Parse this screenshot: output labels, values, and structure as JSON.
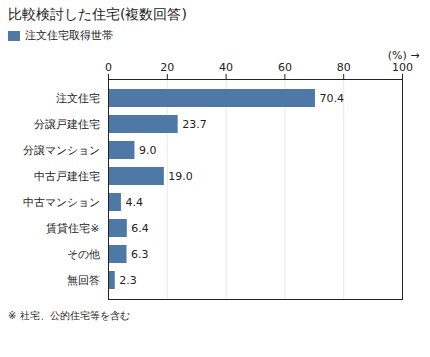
{
  "chart_data": {
    "type": "bar",
    "orientation": "horizontal",
    "title": "比較検討した住宅(複数回答)",
    "xlabel": "(%)",
    "caption": "※ 社宅、公的住宅等を含む",
    "categories": [
      "注文住宅",
      "分譲戸建住宅",
      "分譲マンション",
      "中古戸建住宅",
      "中古マンション",
      "賃貸住宅※",
      "その他",
      "無回答"
    ],
    "series": [
      {
        "name": "注文住宅取得世帯",
        "values": [
          70.4,
          23.7,
          9.0,
          19.0,
          4.4,
          6.4,
          6.3,
          2.3
        ],
        "value_labels": [
          "70.4",
          "23.7",
          "9.0",
          "19.0",
          "4.4",
          "6.4",
          "6.3",
          "2.3"
        ]
      }
    ],
    "xlim": [
      0,
      100
    ],
    "xticks": [
      0,
      20,
      40,
      60,
      80,
      100
    ],
    "grid": true,
    "data_labels": true,
    "legend": "upper left"
  }
}
